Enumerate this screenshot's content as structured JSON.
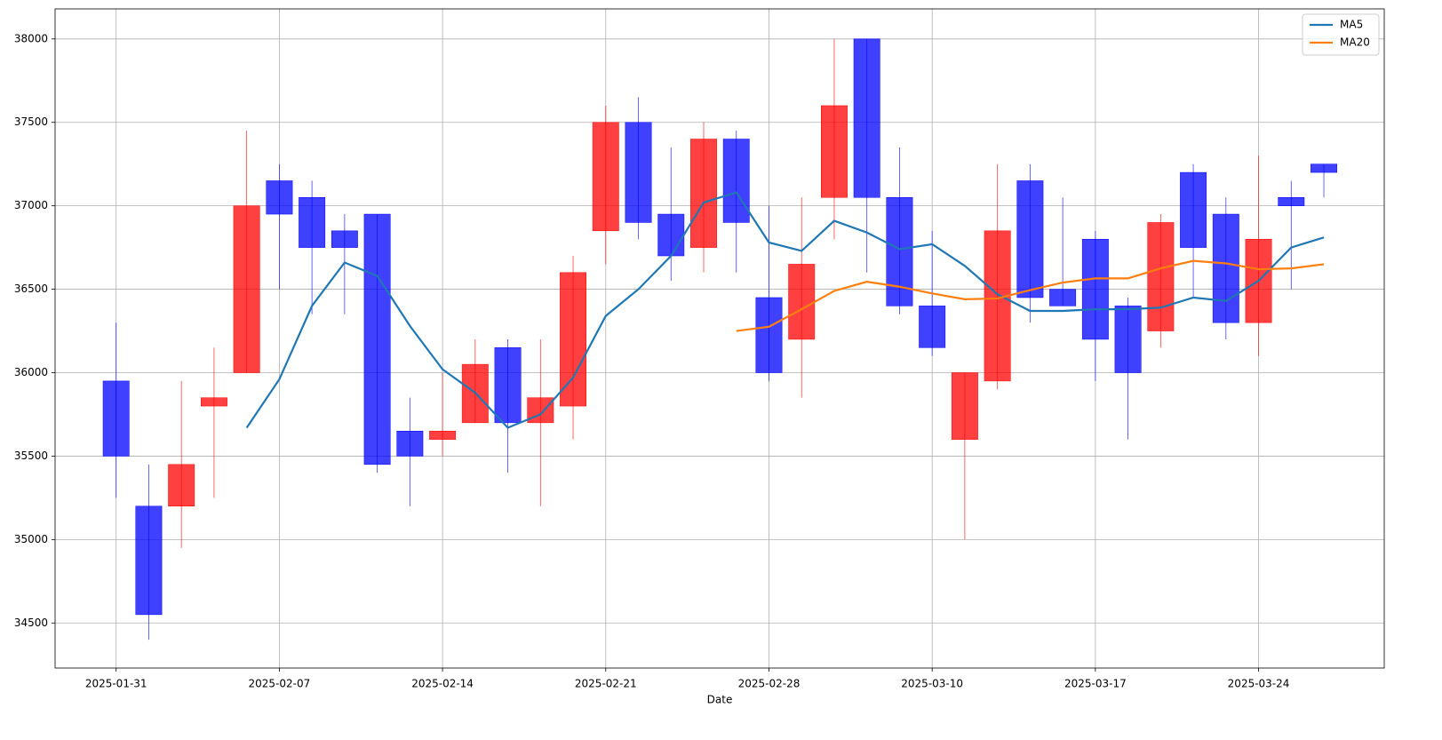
{
  "chart_data": {
    "type": "candlestick",
    "xlabel": "Date",
    "categories": [
      "2025-01-31",
      null,
      null,
      null,
      null,
      "2025-02-07",
      null,
      null,
      null,
      null,
      "2025-02-14",
      null,
      null,
      null,
      null,
      "2025-02-21",
      null,
      null,
      null,
      null,
      "2025-02-28",
      null,
      null,
      null,
      null,
      "2025-03-10",
      null,
      null,
      null,
      null,
      "2025-03-17",
      null,
      null,
      null,
      null,
      "2025-03-24",
      null,
      null
    ],
    "open": [
      35950,
      35200,
      35200,
      35800,
      36000,
      37150,
      37050,
      36850,
      36950,
      35650,
      35600,
      35700,
      36150,
      35700,
      35800,
      36850,
      37500,
      36950,
      36750,
      37400,
      36450,
      36200,
      37050,
      38000,
      37050,
      36400,
      35600,
      35950,
      37150,
      36500,
      36800,
      36400,
      36250,
      37200,
      36950,
      36300,
      37050,
      37250
    ],
    "high": [
      36300,
      35450,
      35950,
      36150,
      37450,
      37250,
      37150,
      36950,
      36950,
      35850,
      36000,
      36200,
      36200,
      36200,
      36700,
      37600,
      37650,
      37350,
      37500,
      37450,
      37000,
      37050,
      38000,
      38000,
      37350,
      36850,
      36000,
      37250,
      37250,
      37050,
      36850,
      36450,
      36950,
      37250,
      37050,
      37300,
      37150,
      37250
    ],
    "low": [
      35250,
      34400,
      34950,
      35250,
      36000,
      36500,
      36350,
      36350,
      35400,
      35200,
      35500,
      35700,
      35400,
      35200,
      35600,
      36650,
      36800,
      36550,
      36600,
      36600,
      35950,
      35850,
      36800,
      36600,
      36350,
      36100,
      35000,
      35900,
      36300,
      36400,
      35950,
      35600,
      36150,
      36450,
      36200,
      36100,
      36500,
      37050
    ],
    "close": [
      35500,
      34550,
      35450,
      35850,
      37000,
      36950,
      36750,
      36750,
      35450,
      35500,
      35650,
      36050,
      35700,
      35850,
      36600,
      37500,
      36900,
      36700,
      37400,
      36900,
      36000,
      36650,
      37600,
      37050,
      36400,
      36150,
      36000,
      36850,
      36450,
      36400,
      36200,
      36000,
      36900,
      36750,
      36300,
      36800,
      37000,
      37200
    ],
    "up_color": "#ff0000",
    "down_color": "#0000ff",
    "series": [
      {
        "name": "MA5",
        "color": "#1f77b4",
        "values": [
          null,
          null,
          null,
          null,
          35670,
          35960,
          36400,
          36660,
          36580,
          36280,
          36020,
          35880,
          35670,
          35750,
          35970,
          36340,
          36500,
          36700,
          37020,
          37080,
          36780,
          36730,
          36910,
          36840,
          36740,
          36770,
          36640,
          36470,
          36370,
          36370,
          36380,
          36380,
          36390,
          36450,
          36430,
          36550,
          36750,
          36810
        ]
      },
      {
        "name": "MA20",
        "color": "#ff7f0e",
        "values": [
          null,
          null,
          null,
          null,
          null,
          null,
          null,
          null,
          null,
          null,
          null,
          null,
          null,
          null,
          null,
          null,
          null,
          null,
          null,
          36250,
          36275,
          36380,
          36490,
          36545,
          36515,
          36475,
          36440,
          36445,
          36495,
          36540,
          36565,
          36565,
          36625,
          36670,
          36655,
          36620,
          36625,
          36650
        ]
      }
    ],
    "ylim": [
      34230,
      38180
    ],
    "yticks": [
      34500,
      35000,
      35500,
      36000,
      36500,
      37000,
      37500,
      38000
    ],
    "grid": true,
    "legend": "upper right"
  }
}
